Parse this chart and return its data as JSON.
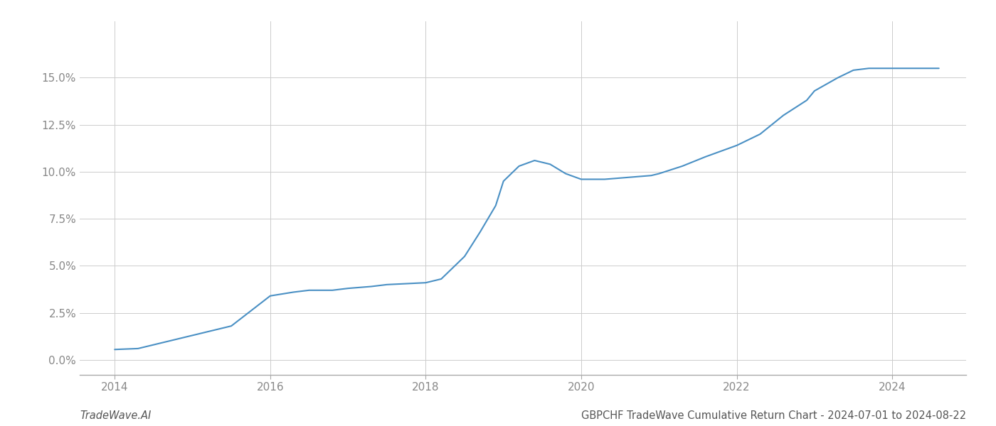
{
  "title": "GBPCHF TradeWave Cumulative Return Chart - 2024-07-01 to 2024-08-22",
  "watermark": "TradeWave.AI",
  "line_color": "#4a90c4",
  "line_width": 1.5,
  "background_color": "#ffffff",
  "grid_color": "#cccccc",
  "x_data": [
    2014.0,
    2014.3,
    2014.6,
    2015.0,
    2015.5,
    2016.0,
    2016.3,
    2016.5,
    2016.8,
    2017.0,
    2017.3,
    2017.5,
    2018.0,
    2018.2,
    2018.5,
    2018.7,
    2018.9,
    2019.0,
    2019.2,
    2019.4,
    2019.6,
    2019.8,
    2020.0,
    2020.3,
    2020.6,
    2020.9,
    2021.0,
    2021.3,
    2021.6,
    2022.0,
    2022.3,
    2022.6,
    2022.9,
    2023.0,
    2023.3,
    2023.5,
    2023.7,
    2024.0,
    2024.3,
    2024.6
  ],
  "y_data": [
    0.0055,
    0.006,
    0.009,
    0.013,
    0.018,
    0.034,
    0.036,
    0.037,
    0.037,
    0.038,
    0.039,
    0.04,
    0.041,
    0.043,
    0.055,
    0.068,
    0.082,
    0.095,
    0.103,
    0.106,
    0.104,
    0.099,
    0.096,
    0.096,
    0.097,
    0.098,
    0.099,
    0.103,
    0.108,
    0.114,
    0.12,
    0.13,
    0.138,
    0.143,
    0.15,
    0.154,
    0.155,
    0.155,
    0.155,
    0.155
  ],
  "xlim": [
    2013.55,
    2024.95
  ],
  "ylim": [
    -0.008,
    0.18
  ],
  "yticks": [
    0.0,
    0.025,
    0.05,
    0.075,
    0.1,
    0.125,
    0.15
  ],
  "xticks": [
    2014,
    2016,
    2018,
    2020,
    2022,
    2024
  ],
  "title_fontsize": 10.5,
  "watermark_fontsize": 10.5,
  "tick_fontsize": 11,
  "tick_color": "#888888",
  "spine_color": "#aaaaaa"
}
